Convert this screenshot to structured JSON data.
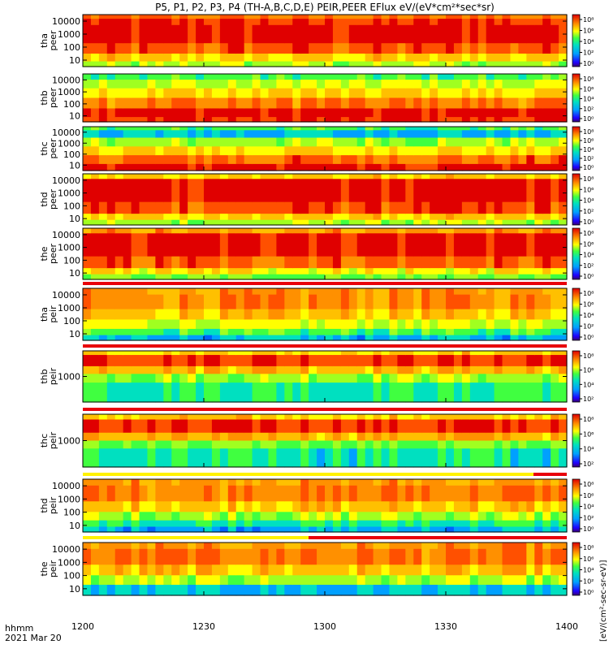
{
  "title": "P5, P1, P2, P3, P4 (TH-A,B,C,D,E) PEIR,PEER EFlux eV/(eV*cm²*sec*sr)",
  "colorbar_unit_label": "[eV/(cm²-sec-sr-eV)]",
  "footer": {
    "line1": "hhmm",
    "line2": "2021 Mar 20"
  },
  "chart_data": [
    {
      "type": "heatmap",
      "probe": "tha",
      "species": "peer",
      "ylabel": [
        "tha",
        "peer"
      ],
      "yscale": "log",
      "yticks": [
        "10000",
        "1000",
        "100",
        "10"
      ],
      "cbar_ticks": [
        "10⁸",
        "10⁶",
        "10⁴",
        "10²",
        "10⁰"
      ]
    },
    {
      "type": "heatmap",
      "probe": "thb",
      "species": "peer",
      "ylabel": [
        "thb",
        "peer"
      ],
      "yscale": "log",
      "yticks": [
        "10000",
        "1000",
        "100",
        "10"
      ],
      "cbar_ticks": [
        "10⁸",
        "10⁶",
        "10⁴",
        "10²",
        "10⁰"
      ]
    },
    {
      "type": "heatmap",
      "probe": "thc",
      "species": "peer",
      "ylabel": [
        "thc",
        "peer"
      ],
      "yscale": "log",
      "yticks": [
        "10000",
        "1000",
        "100",
        "10"
      ],
      "cbar_ticks": [
        "10⁸",
        "10⁶",
        "10⁴",
        "10²",
        "10⁰"
      ]
    },
    {
      "type": "heatmap",
      "probe": "thd",
      "species": "peer",
      "ylabel": [
        "thd",
        "peer"
      ],
      "yscale": "log",
      "yticks": [
        "10000",
        "1000",
        "100",
        "10"
      ],
      "cbar_ticks": [
        "10⁸",
        "10⁶",
        "10⁴",
        "10²",
        "10⁰"
      ]
    },
    {
      "type": "heatmap",
      "probe": "the",
      "species": "peer",
      "ylabel": [
        "the",
        "peer"
      ],
      "yscale": "log",
      "yticks": [
        "10000",
        "1000",
        "100",
        "10"
      ],
      "cbar_ticks": [
        "10⁸",
        "10⁶",
        "10⁴",
        "10²",
        "10⁰"
      ]
    },
    {
      "type": "heatmap",
      "probe": "tha",
      "species": "peir",
      "ylabel": [
        "tha",
        "peir"
      ],
      "yscale": "log",
      "yticks": [
        "10000",
        "1000",
        "100",
        "10"
      ],
      "cbar_ticks": [
        "10⁸",
        "10⁶",
        "10⁴",
        "10²",
        "10⁰"
      ]
    },
    {
      "type": "heatmap",
      "probe": "thb",
      "species": "peir",
      "ylabel": [
        "thb",
        "peir"
      ],
      "yscale": "log",
      "yticks": [
        "1000"
      ],
      "cbar_ticks": [
        "10⁸",
        "10⁶",
        "10⁴",
        "10²"
      ]
    },
    {
      "type": "heatmap",
      "probe": "thc",
      "species": "peir",
      "ylabel": [
        "thc",
        "peir"
      ],
      "yscale": "log",
      "yticks": [
        "1000"
      ],
      "cbar_ticks": [
        "10⁸",
        "10⁶",
        "10⁴",
        "10²"
      ]
    },
    {
      "type": "heatmap",
      "probe": "thd",
      "species": "peir",
      "ylabel": [
        "thd",
        "peir"
      ],
      "yscale": "log",
      "yticks": [
        "10000",
        "1000",
        "100",
        "10"
      ],
      "cbar_ticks": [
        "10⁸",
        "10⁶",
        "10⁴",
        "10²",
        "10⁰"
      ]
    },
    {
      "type": "heatmap",
      "probe": "the",
      "species": "peir",
      "ylabel": [
        "the",
        "peir"
      ],
      "yscale": "log",
      "yticks": [
        "10000",
        "1000",
        "100",
        "10"
      ],
      "cbar_ticks": [
        "10⁸",
        "10⁶",
        "10⁴",
        "10²",
        "10⁰"
      ]
    }
  ],
  "x_axis": {
    "tick_labels": [
      "1200",
      "1230",
      "1300",
      "1330",
      "1400"
    ],
    "range": [
      "1200",
      "1400"
    ]
  },
  "colors": {
    "frame": "#000000",
    "mode_bar_red": "#e8000b",
    "mode_bar_yellow": "#fff200"
  }
}
